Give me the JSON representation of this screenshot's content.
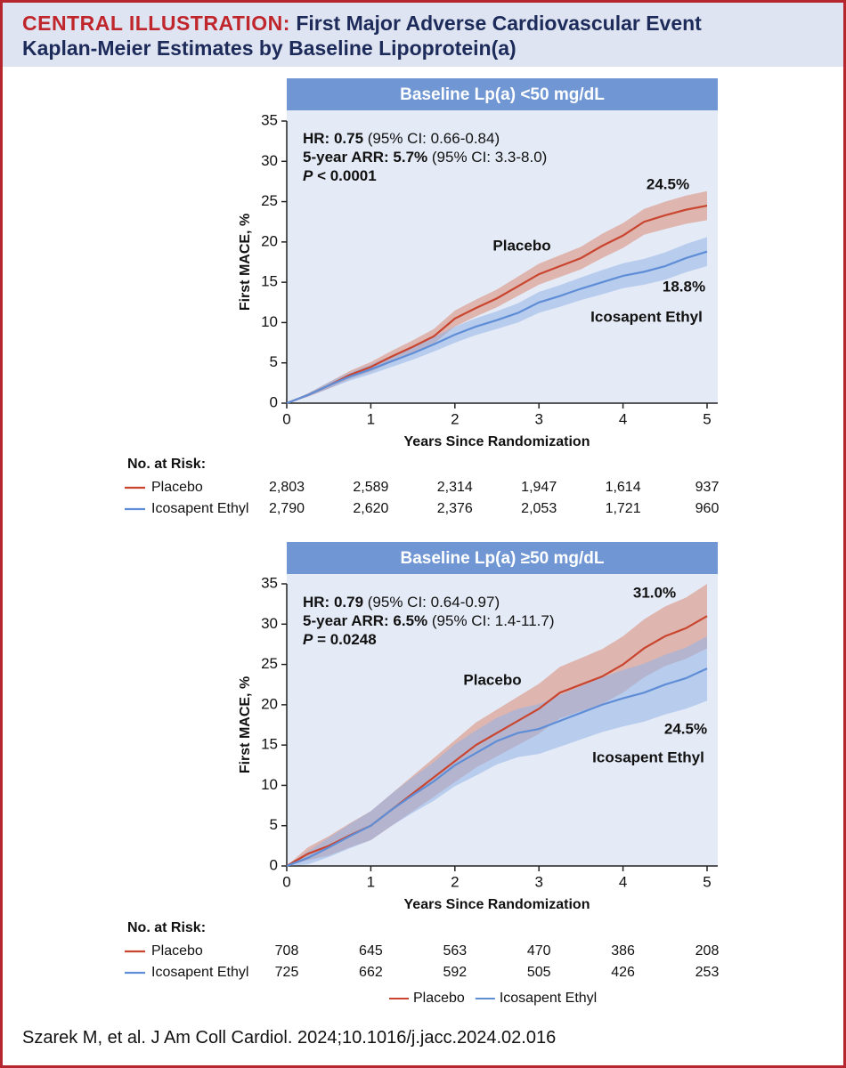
{
  "header": {
    "label": "CENTRAL ILLUSTRATION:",
    "title": "First Major Adverse Cardiovascular Event",
    "subtitle": "Kaplan-Meier Estimates by Baseline Lipoprotein(a)"
  },
  "citation": "Szarek M, et al. J Am Coll Cardiol. 2024;10.1016/j.jacc.2024.02.016",
  "chart_data": [
    {
      "type": "line",
      "title": "Baseline Lp(a) <50 mg/dL",
      "xlabel": "Years Since Randomization",
      "ylabel": "First MACE, %",
      "xlim": [
        0,
        5
      ],
      "xticks": [
        0,
        1,
        2,
        3,
        4,
        5
      ],
      "ylim": [
        0,
        35
      ],
      "yticks": [
        0,
        5,
        10,
        15,
        20,
        25,
        30,
        35
      ],
      "annotations": [
        [
          {
            "text": "HR: 0.75",
            "style": "bold"
          },
          {
            "text": " (95% CI: 0.66-0.84)",
            "style": "normal"
          }
        ],
        [
          {
            "text": "5-year ARR: 5.7%",
            "style": "bold"
          },
          {
            "text": " (95% CI: 3.3-8.0)",
            "style": "normal"
          }
        ],
        [
          {
            "text": "P",
            "style": "bold-italic"
          },
          {
            "text": " < 0.0001",
            "style": "bold"
          }
        ]
      ],
      "x": [
        0,
        0.25,
        0.5,
        0.75,
        1,
        1.25,
        1.5,
        1.75,
        2,
        2.25,
        2.5,
        2.75,
        3,
        3.25,
        3.5,
        3.75,
        4,
        4.25,
        4.5,
        4.75,
        5
      ],
      "series": [
        {
          "name": "Placebo",
          "color": "#c9452f",
          "band_color": "#d98a74",
          "end_label": "24.5%",
          "values": [
            0,
            1,
            2.2,
            3.5,
            4.5,
            5.8,
            7,
            8.3,
            10.5,
            11.8,
            13,
            14.5,
            16,
            17,
            18,
            19.5,
            20.8,
            22.5,
            23.3,
            24,
            24.5
          ],
          "lower": [
            0,
            0.8,
            1.8,
            3.0,
            3.9,
            5.1,
            6.2,
            7.4,
            9.5,
            10.75,
            11.9,
            13.3,
            14.7,
            15.65,
            16.6,
            18.0,
            19.25,
            20.9,
            21.6,
            22.25,
            22.7
          ],
          "upper": [
            0,
            1.2,
            2.6,
            4.0,
            5.1,
            6.5,
            7.8,
            9.2,
            11.5,
            12.85,
            14.1,
            15.7,
            17.3,
            18.35,
            19.4,
            21.0,
            22.35,
            24.1,
            25.0,
            25.75,
            26.3
          ]
        },
        {
          "name": "Icosapent Ethyl",
          "color": "#5f8ed6",
          "band_color": "#94b3e8",
          "end_label": "18.8%",
          "values": [
            0,
            1,
            2.2,
            3.3,
            4.2,
            5.2,
            6.2,
            7.3,
            8.5,
            9.5,
            10.3,
            11.2,
            12.5,
            13.3,
            14.2,
            15,
            15.8,
            16.3,
            17,
            18,
            18.8
          ],
          "lower": [
            0,
            0.8,
            1.8,
            2.8,
            3.6,
            4.5,
            5.4,
            6.4,
            7.5,
            8.45,
            9.2,
            10.0,
            11.2,
            11.95,
            12.8,
            13.5,
            14.25,
            14.7,
            15.3,
            16.25,
            17.0
          ],
          "upper": [
            0,
            1.2,
            2.6,
            3.8,
            4.8,
            5.9,
            7.0,
            8.2,
            9.5,
            10.55,
            11.4,
            12.4,
            13.8,
            14.65,
            15.6,
            16.5,
            17.35,
            17.9,
            18.7,
            19.75,
            20.6
          ]
        }
      ],
      "risk_table": {
        "label": "No. at Risk:",
        "rows": [
          [
            "2,803",
            "2,589",
            "2,314",
            "1,947",
            "1,614",
            "937"
          ],
          [
            "2,790",
            "2,620",
            "2,376",
            "2,053",
            "1,721",
            "960"
          ]
        ]
      }
    },
    {
      "type": "line",
      "title": "Baseline Lp(a) ≥50 mg/dL",
      "xlabel": "Years Since Randomization",
      "ylabel": "First MACE, %",
      "xlim": [
        0,
        5
      ],
      "xticks": [
        0,
        1,
        2,
        3,
        4,
        5
      ],
      "ylim": [
        0,
        35
      ],
      "yticks": [
        0,
        5,
        10,
        15,
        20,
        25,
        30,
        35
      ],
      "annotations": [
        [
          {
            "text": "HR: 0.79",
            "style": "bold"
          },
          {
            "text": " (95% CI: 0.64-0.97)",
            "style": "normal"
          }
        ],
        [
          {
            "text": "5-year ARR: 6.5%",
            "style": "bold"
          },
          {
            "text": " (95% CI: 1.4-11.7)",
            "style": "normal"
          }
        ],
        [
          {
            "text": "P",
            "style": "bold-italic"
          },
          {
            "text": " = 0.0248",
            "style": "bold"
          }
        ]
      ],
      "x": [
        0,
        0.25,
        0.5,
        0.75,
        1,
        1.25,
        1.5,
        1.75,
        2,
        2.25,
        2.5,
        2.75,
        3,
        3.25,
        3.5,
        3.75,
        4,
        4.25,
        4.5,
        4.75,
        5
      ],
      "series": [
        {
          "name": "Placebo",
          "color": "#c9452f",
          "band_color": "#d98a74",
          "end_label": "31.0%",
          "values": [
            0,
            1.5,
            2.5,
            3.8,
            5,
            7,
            9,
            11,
            13,
            15,
            16.5,
            18,
            19.5,
            21.5,
            22.5,
            23.5,
            25,
            27,
            28.5,
            29.5,
            31
          ],
          "lower": [
            0,
            0.7,
            1.3,
            2.3,
            3.2,
            5.0,
            6.8,
            8.6,
            10.4,
            12.2,
            13.6,
            15.0,
            16.4,
            18.3,
            19.2,
            20.1,
            21.5,
            23.4,
            24.8,
            25.7,
            27.0
          ],
          "upper": [
            0,
            2.3,
            3.7,
            5.3,
            6.8,
            9.0,
            11.2,
            13.4,
            15.6,
            17.8,
            19.4,
            21.0,
            22.6,
            24.7,
            25.8,
            26.9,
            28.5,
            30.6,
            32.2,
            33.3,
            35.0
          ]
        },
        {
          "name": "Icosapent Ethyl",
          "color": "#5f8ed6",
          "band_color": "#94b3e8",
          "end_label": "24.5%",
          "values": [
            0,
            1,
            2.3,
            3.7,
            5,
            7,
            8.8,
            10.5,
            12.5,
            14,
            15.5,
            16.5,
            17,
            18,
            19,
            20,
            20.8,
            21.5,
            22.5,
            23.3,
            24.5
          ],
          "lower": [
            0,
            0.2,
            1.1,
            2.2,
            3.2,
            5.0,
            6.6,
            8.1,
            9.9,
            11.2,
            12.6,
            13.5,
            13.9,
            14.8,
            15.7,
            16.6,
            17.3,
            17.9,
            18.8,
            19.5,
            20.5
          ],
          "upper": [
            0,
            1.8,
            3.5,
            5.2,
            6.8,
            9.0,
            11.0,
            12.9,
            15.1,
            16.8,
            18.4,
            19.5,
            20.1,
            21.2,
            22.3,
            23.4,
            24.3,
            25.1,
            26.2,
            27.1,
            28.5
          ]
        }
      ],
      "risk_table": {
        "label": "No. at Risk:",
        "rows": [
          [
            "708",
            "645",
            "563",
            "470",
            "386",
            "208"
          ],
          [
            "725",
            "662",
            "592",
            "505",
            "426",
            "253"
          ]
        ]
      },
      "legend": "bottom"
    }
  ]
}
